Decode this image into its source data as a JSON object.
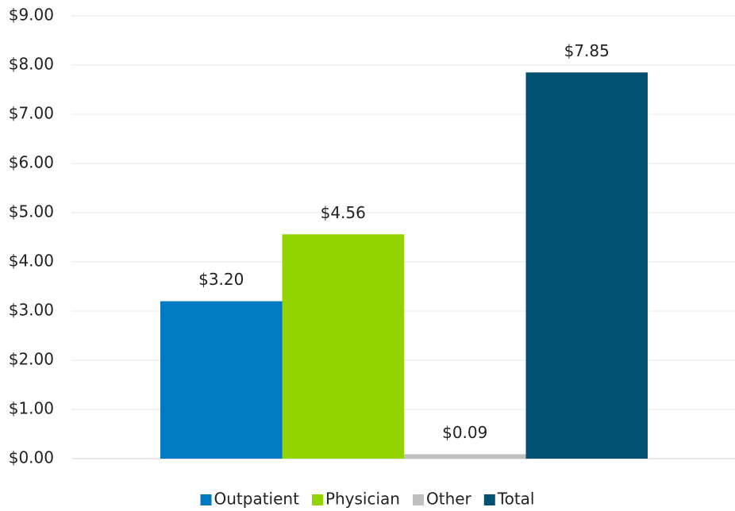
{
  "chart_data": {
    "type": "bar",
    "categories": [
      null
    ],
    "series": [
      {
        "name": "Outpatient",
        "color": "#007ac3",
        "values": [
          3.2
        ],
        "value_labels": [
          "$3.20"
        ]
      },
      {
        "name": "Physician",
        "color": "#92d400",
        "values": [
          4.56
        ],
        "value_labels": [
          "$4.56"
        ]
      },
      {
        "name": "Other",
        "color": "#bfbfbf",
        "values": [
          0.09
        ],
        "value_labels": [
          "$0.09"
        ]
      },
      {
        "name": "Total",
        "color": "#005172",
        "values": [
          7.85
        ],
        "value_labels": [
          "$7.85"
        ]
      }
    ],
    "ylim": [
      0,
      9
    ],
    "yticks": [
      {
        "value": 0,
        "label": "$0.00"
      },
      {
        "value": 1,
        "label": "$1.00"
      },
      {
        "value": 2,
        "label": "$2.00"
      },
      {
        "value": 3,
        "label": "$3.00"
      },
      {
        "value": 4,
        "label": "$4.00"
      },
      {
        "value": 5,
        "label": "$5.00"
      },
      {
        "value": 6,
        "label": "$6.00"
      },
      {
        "value": 7,
        "label": "$7.00"
      },
      {
        "value": 8,
        "label": "$8.00"
      },
      {
        "value": 9,
        "label": "$9.00"
      }
    ],
    "grid": true,
    "legend": "bottom"
  }
}
